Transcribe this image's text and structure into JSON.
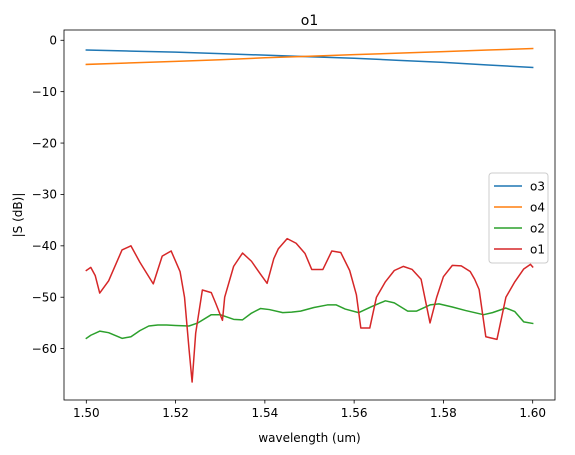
{
  "chart_data": {
    "type": "line",
    "title": "o1",
    "xlabel": "wavelength (um)",
    "ylabel": "|S (dB)|",
    "xlim": [
      1.495,
      1.605
    ],
    "ylim": [
      -70,
      2
    ],
    "x_ticks": [
      1.5,
      1.52,
      1.54,
      1.56,
      1.58,
      1.6
    ],
    "x_tick_labels": [
      "1.50",
      "1.52",
      "1.54",
      "1.56",
      "1.58",
      "1.60"
    ],
    "y_ticks": [
      0,
      -10,
      -20,
      -30,
      -40,
      -50,
      -60
    ],
    "y_tick_labels": [
      "0",
      "−10",
      "−20",
      "−30",
      "−40",
      "−50",
      "−60"
    ],
    "grid": false,
    "legend_position": "center-right",
    "series": [
      {
        "name": "o3",
        "color": "#1f77b4",
        "points": [
          [
            1.5,
            -1.9
          ],
          [
            1.51,
            -2.1
          ],
          [
            1.52,
            -2.3
          ],
          [
            1.53,
            -2.6
          ],
          [
            1.54,
            -2.9
          ],
          [
            1.55,
            -3.2
          ],
          [
            1.56,
            -3.5
          ],
          [
            1.57,
            -3.9
          ],
          [
            1.58,
            -4.3
          ],
          [
            1.59,
            -4.8
          ],
          [
            1.6,
            -5.3
          ]
        ]
      },
      {
        "name": "o4",
        "color": "#ff7f0e",
        "points": [
          [
            1.5,
            -4.7
          ],
          [
            1.51,
            -4.4
          ],
          [
            1.52,
            -4.1
          ],
          [
            1.53,
            -3.8
          ],
          [
            1.54,
            -3.4
          ],
          [
            1.55,
            -3.1
          ],
          [
            1.56,
            -2.8
          ],
          [
            1.57,
            -2.5
          ],
          [
            1.58,
            -2.2
          ],
          [
            1.59,
            -1.9
          ],
          [
            1.6,
            -1.6
          ]
        ]
      },
      {
        "name": "o2",
        "color": "#2ca02c",
        "points": [
          [
            1.5,
            -58.0
          ],
          [
            1.501,
            -57.4
          ],
          [
            1.503,
            -56.6
          ],
          [
            1.505,
            -56.9
          ],
          [
            1.508,
            -58.0
          ],
          [
            1.51,
            -57.7
          ],
          [
            1.512,
            -56.5
          ],
          [
            1.514,
            -55.6
          ],
          [
            1.516,
            -55.4
          ],
          [
            1.518,
            -55.4
          ],
          [
            1.52,
            -55.5
          ],
          [
            1.523,
            -55.6
          ],
          [
            1.525,
            -55.0
          ],
          [
            1.528,
            -53.4
          ],
          [
            1.53,
            -53.4
          ],
          [
            1.533,
            -54.3
          ],
          [
            1.535,
            -54.4
          ],
          [
            1.537,
            -53.1
          ],
          [
            1.539,
            -52.2
          ],
          [
            1.541,
            -52.4
          ],
          [
            1.544,
            -53.0
          ],
          [
            1.546,
            -52.9
          ],
          [
            1.548,
            -52.7
          ],
          [
            1.551,
            -52.0
          ],
          [
            1.554,
            -51.5
          ],
          [
            1.556,
            -51.5
          ],
          [
            1.558,
            -52.3
          ],
          [
            1.561,
            -53.0
          ],
          [
            1.564,
            -51.8
          ],
          [
            1.567,
            -50.7
          ],
          [
            1.569,
            -51.1
          ],
          [
            1.572,
            -52.7
          ],
          [
            1.574,
            -52.7
          ],
          [
            1.577,
            -51.5
          ],
          [
            1.579,
            -51.3
          ],
          [
            1.582,
            -51.9
          ],
          [
            1.585,
            -52.6
          ],
          [
            1.589,
            -53.4
          ],
          [
            1.591,
            -53.0
          ],
          [
            1.594,
            -52.1
          ],
          [
            1.596,
            -52.8
          ],
          [
            1.598,
            -54.8
          ],
          [
            1.6,
            -55.1
          ]
        ]
      },
      {
        "name": "o1",
        "color": "#d62728",
        "points": [
          [
            1.5,
            -44.8
          ],
          [
            1.501,
            -44.2
          ],
          [
            1.502,
            -45.8
          ],
          [
            1.503,
            -49.2
          ],
          [
            1.505,
            -46.8
          ],
          [
            1.508,
            -40.8
          ],
          [
            1.51,
            -40.0
          ],
          [
            1.512,
            -43.2
          ],
          [
            1.513,
            -44.6
          ],
          [
            1.515,
            -47.4
          ],
          [
            1.517,
            -42.0
          ],
          [
            1.519,
            -41.0
          ],
          [
            1.521,
            -45.0
          ],
          [
            1.522,
            -50.0
          ],
          [
            1.523,
            -60.0
          ],
          [
            1.5237,
            -66.5
          ],
          [
            1.5245,
            -57.0
          ],
          [
            1.526,
            -48.6
          ],
          [
            1.528,
            -49.1
          ],
          [
            1.529,
            -51.2
          ],
          [
            1.5305,
            -54.5
          ],
          [
            1.531,
            -50.0
          ],
          [
            1.533,
            -44.0
          ],
          [
            1.535,
            -41.4
          ],
          [
            1.537,
            -43.0
          ],
          [
            1.539,
            -45.5
          ],
          [
            1.5405,
            -47.3
          ],
          [
            1.542,
            -42.5
          ],
          [
            1.543,
            -40.6
          ],
          [
            1.545,
            -38.6
          ],
          [
            1.547,
            -39.5
          ],
          [
            1.549,
            -41.5
          ],
          [
            1.5505,
            -44.6
          ],
          [
            1.553,
            -44.6
          ],
          [
            1.555,
            -41.0
          ],
          [
            1.557,
            -41.3
          ],
          [
            1.559,
            -44.8
          ],
          [
            1.5605,
            -49.5
          ],
          [
            1.5615,
            -56.0
          ],
          [
            1.5635,
            -56.0
          ],
          [
            1.565,
            -50.0
          ],
          [
            1.567,
            -47.0
          ],
          [
            1.569,
            -44.8
          ],
          [
            1.571,
            -44.0
          ],
          [
            1.573,
            -44.6
          ],
          [
            1.575,
            -46.5
          ],
          [
            1.577,
            -55.0
          ],
          [
            1.5785,
            -50.0
          ],
          [
            1.58,
            -46.0
          ],
          [
            1.582,
            -43.8
          ],
          [
            1.584,
            -43.9
          ],
          [
            1.586,
            -45.0
          ],
          [
            1.587,
            -46.5
          ],
          [
            1.588,
            -48.5
          ],
          [
            1.5895,
            -57.7
          ],
          [
            1.592,
            -58.2
          ],
          [
            1.594,
            -50.0
          ],
          [
            1.596,
            -47.0
          ],
          [
            1.598,
            -44.5
          ],
          [
            1.5995,
            -43.6
          ],
          [
            1.6,
            -44.1
          ]
        ]
      }
    ]
  }
}
